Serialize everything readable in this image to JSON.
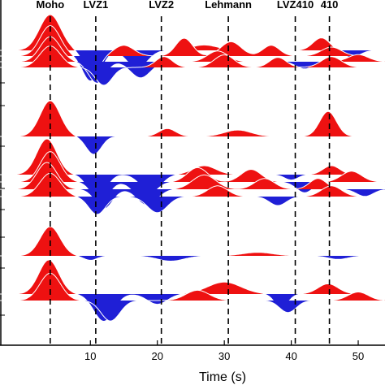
{
  "chart_data": {
    "type": "area",
    "title": "",
    "xlabel": "Time (s)",
    "ylabel": "",
    "xlim": [
      -3.5,
      54
    ],
    "x_ticks": [
      10,
      20,
      30,
      40,
      50
    ],
    "grid": false,
    "legend": "none",
    "colors": {
      "positive": "#ee1111",
      "negative": "#1f1fd6",
      "trace_line": "#ffffff",
      "marker": "#000000"
    },
    "phase_markers": [
      {
        "label": "Moho",
        "time": 4.0
      },
      {
        "label": "LVZ1",
        "time": 10.8
      },
      {
        "label": "LVZ2",
        "time": 20.6
      },
      {
        "label": "Lehmann",
        "time": 30.6
      },
      {
        "label": "LVZ410",
        "time": 40.6
      },
      {
        "label": "410",
        "time": 45.7
      }
    ],
    "groups": [
      {
        "traces": [
          {
            "arrivals": [
              [
                4.0,
                1.0,
                3.2
              ],
              [
                10.5,
                -0.8,
                2.5
              ],
              [
                17.0,
                -0.5,
                3.0
              ],
              [
                27.0,
                0.15,
                4.0
              ],
              [
                44.5,
                0.35,
                2.5
              ],
              [
                49.0,
                -0.2,
                2.5
              ]
            ]
          },
          {
            "arrivals": [
              [
                4.0,
                0.85,
                3.0
              ],
              [
                10.0,
                -0.7,
                2.3
              ],
              [
                15.0,
                0.3,
                3.0
              ],
              [
                24.0,
                0.5,
                2.5
              ],
              [
                31.0,
                0.4,
                3.0
              ],
              [
                37.0,
                0.3,
                2.5
              ],
              [
                46.0,
                0.25,
                3.0
              ]
            ]
          },
          {
            "arrivals": [
              [
                4.0,
                0.7,
                3.0
              ],
              [
                11.0,
                -0.6,
                2.5
              ],
              [
                17.5,
                -0.45,
                3.0
              ],
              [
                29.0,
                0.3,
                3.0
              ],
              [
                42.0,
                -0.2,
                2.5
              ],
              [
                50.0,
                0.2,
                3.0
              ]
            ]
          },
          {
            "arrivals": [
              [
                4.0,
                0.6,
                3.1
              ],
              [
                12.0,
                -0.5,
                2.5
              ],
              [
                21.0,
                0.3,
                2.5
              ],
              [
                30.0,
                0.35,
                3.0
              ],
              [
                38.0,
                0.28,
                2.5
              ],
              [
                46.0,
                0.3,
                3.0
              ]
            ]
          }
        ]
      },
      {
        "traces": [
          {
            "arrivals": [
              [
                4.0,
                1.0,
                3.0
              ],
              [
                10.5,
                -0.5,
                2.3
              ],
              [
                21.5,
                0.22,
                2.5
              ],
              [
                32.0,
                0.18,
                4.0
              ],
              [
                45.5,
                0.7,
                2.5
              ]
            ]
          }
        ]
      },
      {
        "traces": [
          {
            "arrivals": [
              [
                3.5,
                1.0,
                3.0
              ],
              [
                11.0,
                -0.7,
                2.6
              ],
              [
                19.0,
                -0.5,
                3.0
              ],
              [
                27.0,
                0.25,
                3.5
              ],
              [
                40.0,
                -0.15,
                2.0
              ],
              [
                46.0,
                0.25,
                2.5
              ]
            ]
          },
          {
            "arrivals": [
              [
                4.0,
                0.85,
                3.0
              ],
              [
                11.5,
                -0.6,
                2.5
              ],
              [
                18.0,
                -0.5,
                3.0
              ],
              [
                26.0,
                0.4,
                3.0
              ],
              [
                34.0,
                0.35,
                3.0
              ],
              [
                42.0,
                -0.3,
                2.5
              ],
              [
                49.0,
                0.3,
                3.0
              ]
            ]
          },
          {
            "arrivals": [
              [
                3.5,
                0.75,
                3.0
              ],
              [
                12.0,
                -0.55,
                2.6
              ],
              [
                18.5,
                -0.45,
                3.0
              ],
              [
                27.0,
                0.4,
                3.5
              ],
              [
                36.0,
                0.3,
                3.0
              ],
              [
                44.0,
                0.3,
                2.5
              ],
              [
                51.0,
                -0.2,
                2.5
              ]
            ]
          },
          {
            "arrivals": [
              [
                4.0,
                0.65,
                3.1
              ],
              [
                11.0,
                -0.5,
                2.5
              ],
              [
                20.0,
                -0.45,
                3.0
              ],
              [
                29.0,
                0.3,
                3.0
              ],
              [
                38.0,
                -0.25,
                2.5
              ],
              [
                46.0,
                0.3,
                3.0
              ]
            ]
          }
        ]
      },
      {
        "traces": [
          {
            "arrivals": [
              [
                4.0,
                1.0,
                3.0
              ],
              [
                10.0,
                -0.15,
                2.0
              ],
              [
                22.0,
                -0.18,
                4.0
              ],
              [
                35.0,
                0.12,
                4.5
              ],
              [
                47.0,
                -0.12,
                3.0
              ]
            ]
          }
        ]
      },
      {
        "traces": [
          {
            "arrivals": [
              [
                3.8,
                1.0,
                3.0
              ],
              [
                12.0,
                -0.8,
                3.0
              ],
              [
                20.0,
                -0.3,
                3.0
              ],
              [
                30.0,
                0.35,
                5.0
              ],
              [
                38.5,
                -0.4,
                2.0
              ],
              [
                45.5,
                0.3,
                3.0
              ]
            ]
          },
          {
            "arrivals": [
              [
                4.0,
                0.8,
                3.1
              ],
              [
                13.0,
                -0.6,
                2.8
              ],
              [
                26.0,
                0.3,
                3.5
              ],
              [
                39.5,
                -0.35,
                2.5
              ],
              [
                50.0,
                0.25,
                3.0
              ]
            ]
          }
        ]
      }
    ]
  }
}
